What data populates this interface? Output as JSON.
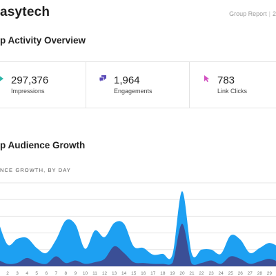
{
  "header": {
    "brand": "asytech",
    "report_label": "Group Report",
    "report_suffix": "2"
  },
  "activity": {
    "title": "p Activity Overview",
    "stats": [
      {
        "value": "297,376",
        "label": "Impressions",
        "icon": "impressions-icon",
        "color": "#2bb5a8"
      },
      {
        "value": "1,964",
        "label": "Engagements",
        "icon": "chat-bubbles-icon",
        "color": "#5b4bb8"
      },
      {
        "value": "783",
        "label": "Link Clicks",
        "icon": "cursor-icon",
        "color": "#d24fc1"
      }
    ]
  },
  "growth": {
    "title": "p Audience Growth",
    "subtitle": "NCE GROWTH, BY DAY"
  },
  "colors": {
    "light_area": "#1da0f2",
    "dark_area": "#3b4f96",
    "grid": "#e5e5e5"
  },
  "chart_data": {
    "type": "area",
    "x": [
      1,
      2,
      3,
      4,
      5,
      6,
      7,
      8,
      9,
      10,
      11,
      12,
      13,
      14,
      15,
      16,
      17,
      18,
      19,
      20,
      21,
      22,
      23,
      24,
      25,
      26,
      27,
      28,
      29,
      30
    ],
    "series": [
      {
        "values": [
          5.5,
          2.6,
          3.3,
          3.4,
          2.2,
          1.6,
          3.2,
          5.5,
          5.0,
          2.1,
          4.3,
          3.5,
          5.2,
          5.1,
          2.4,
          2.2,
          1.4,
          1.5,
          1.4,
          9.0,
          1.5,
          2.0,
          2.0,
          1.5,
          3.7,
          3.2,
          1.6,
          2.2,
          2.8,
          2.3
        ]
      },
      {
        "values": [
          0.8,
          0.3,
          0.4,
          1.0,
          0.5,
          0.3,
          1.2,
          0.4,
          0.7,
          0.3,
          0.5,
          0.9,
          2.4,
          1.6,
          0.5,
          0.4,
          0.3,
          0.3,
          0.4,
          5.1,
          0.3,
          0.4,
          0.7,
          0.3,
          1.2,
          0.9,
          0.3,
          0.6,
          0.9,
          0.5
        ]
      }
    ],
    "ylim": [
      0,
      10
    ],
    "grid": true,
    "legend": "none"
  }
}
